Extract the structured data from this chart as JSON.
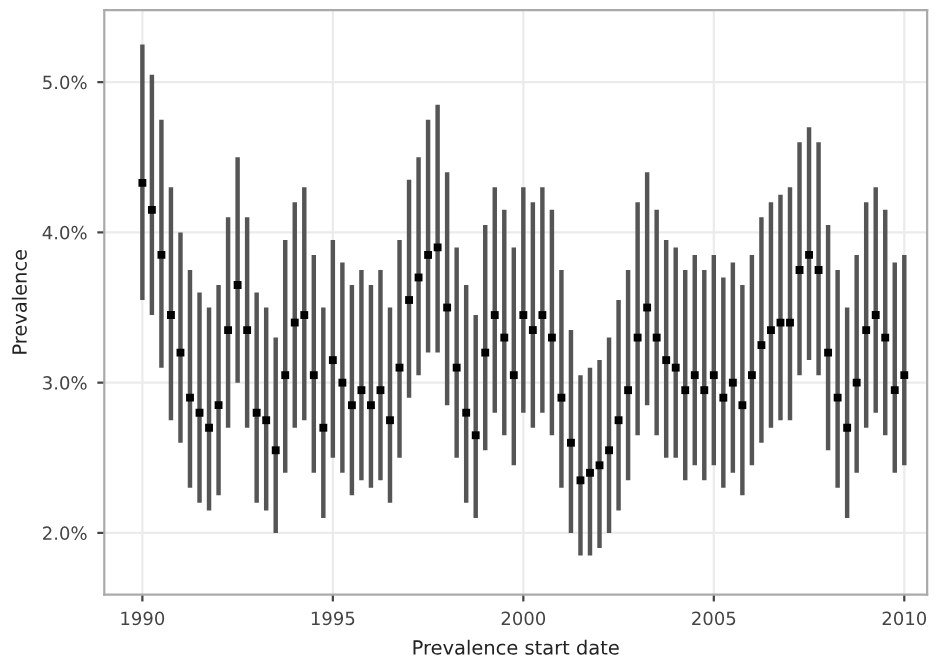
{
  "chart_data": {
    "type": "scatter",
    "xlabel": "Prevalence start date",
    "ylabel": "Prevalence",
    "x": [
      1990.0,
      1990.25,
      1990.5,
      1990.75,
      1991.0,
      1991.25,
      1991.5,
      1991.75,
      1992.0,
      1992.25,
      1992.5,
      1992.75,
      1993.0,
      1993.25,
      1993.5,
      1993.75,
      1994.0,
      1994.25,
      1994.5,
      1994.75,
      1995.0,
      1995.25,
      1995.5,
      1995.75,
      1996.0,
      1996.25,
      1996.5,
      1996.75,
      1997.0,
      1997.25,
      1997.5,
      1997.75,
      1998.0,
      1998.25,
      1998.5,
      1998.75,
      1999.0,
      1999.25,
      1999.5,
      1999.75,
      2000.0,
      2000.25,
      2000.5,
      2000.75,
      2001.0,
      2001.25,
      2001.5,
      2001.75,
      2002.0,
      2002.25,
      2002.5,
      2002.75,
      2003.0,
      2003.25,
      2003.5,
      2003.75,
      2004.0,
      2004.25,
      2004.5,
      2004.75,
      2005.0,
      2005.25,
      2005.5,
      2005.75,
      2006.0,
      2006.25,
      2006.5,
      2006.75,
      2007.0,
      2007.25,
      2007.5,
      2007.75,
      2008.0,
      2008.25,
      2008.5,
      2008.75,
      2009.0,
      2009.25,
      2009.5,
      2009.75,
      2010.0
    ],
    "series": [
      {
        "color": "#000000",
        "values": [
          4.33,
          4.15,
          3.85,
          3.45,
          3.2,
          2.9,
          2.8,
          2.7,
          2.85,
          3.35,
          3.65,
          3.35,
          2.8,
          2.75,
          2.55,
          3.05,
          3.4,
          3.45,
          3.05,
          2.7,
          3.15,
          3.0,
          2.85,
          2.95,
          2.85,
          2.95,
          2.75,
          3.1,
          3.55,
          3.7,
          3.85,
          3.9,
          3.5,
          3.1,
          2.8,
          2.65,
          3.2,
          3.45,
          3.3,
          3.05,
          3.45,
          3.35,
          3.45,
          3.3,
          2.9,
          2.6,
          2.35,
          2.4,
          2.45,
          2.55,
          2.75,
          2.95,
          3.3,
          3.5,
          3.3,
          3.15,
          3.1,
          2.95,
          3.05,
          2.95,
          3.05,
          2.9,
          3.0,
          2.85,
          3.05,
          3.25,
          3.35,
          3.4,
          3.4,
          3.75,
          3.85,
          3.75,
          3.2,
          2.9,
          2.7,
          3.0,
          3.35,
          3.45,
          3.3,
          2.95,
          3.05
        ],
        "errors": [
          [
            3.55,
            5.25
          ],
          [
            3.45,
            5.05
          ],
          [
            3.1,
            4.75
          ],
          [
            2.75,
            4.3
          ],
          [
            2.6,
            4.0
          ],
          [
            2.3,
            3.75
          ],
          [
            2.2,
            3.6
          ],
          [
            2.15,
            3.5
          ],
          [
            2.25,
            3.65
          ],
          [
            2.7,
            4.1
          ],
          [
            3.0,
            4.5
          ],
          [
            2.7,
            4.1
          ],
          [
            2.2,
            3.6
          ],
          [
            2.15,
            3.5
          ],
          [
            2.0,
            3.3
          ],
          [
            2.4,
            3.95
          ],
          [
            2.7,
            4.2
          ],
          [
            2.75,
            4.3
          ],
          [
            2.4,
            3.85
          ],
          [
            2.1,
            3.5
          ],
          [
            2.5,
            3.95
          ],
          [
            2.4,
            3.8
          ],
          [
            2.25,
            3.65
          ],
          [
            2.35,
            3.75
          ],
          [
            2.3,
            3.65
          ],
          [
            2.35,
            3.75
          ],
          [
            2.2,
            3.5
          ],
          [
            2.5,
            3.95
          ],
          [
            2.9,
            4.35
          ],
          [
            3.05,
            4.5
          ],
          [
            3.2,
            4.75
          ],
          [
            3.2,
            4.85
          ],
          [
            2.85,
            4.4
          ],
          [
            2.5,
            3.9
          ],
          [
            2.2,
            3.65
          ],
          [
            2.1,
            3.45
          ],
          [
            2.55,
            4.05
          ],
          [
            2.8,
            4.3
          ],
          [
            2.65,
            4.15
          ],
          [
            2.45,
            3.9
          ],
          [
            2.8,
            4.3
          ],
          [
            2.7,
            4.2
          ],
          [
            2.8,
            4.3
          ],
          [
            2.65,
            4.15
          ],
          [
            2.3,
            3.75
          ],
          [
            2.0,
            3.35
          ],
          [
            1.85,
            3.05
          ],
          [
            1.85,
            3.1
          ],
          [
            1.9,
            3.15
          ],
          [
            2.0,
            3.3
          ],
          [
            2.15,
            3.55
          ],
          [
            2.35,
            3.75
          ],
          [
            2.65,
            4.2
          ],
          [
            2.85,
            4.4
          ],
          [
            2.65,
            4.15
          ],
          [
            2.5,
            3.95
          ],
          [
            2.5,
            3.9
          ],
          [
            2.35,
            3.75
          ],
          [
            2.45,
            3.85
          ],
          [
            2.35,
            3.75
          ],
          [
            2.45,
            3.85
          ],
          [
            2.3,
            3.7
          ],
          [
            2.4,
            3.8
          ],
          [
            2.25,
            3.65
          ],
          [
            2.45,
            3.85
          ],
          [
            2.6,
            4.1
          ],
          [
            2.7,
            4.2
          ],
          [
            2.75,
            4.25
          ],
          [
            2.75,
            4.3
          ],
          [
            3.05,
            4.6
          ],
          [
            3.15,
            4.7
          ],
          [
            3.05,
            4.6
          ],
          [
            2.55,
            4.05
          ],
          [
            2.3,
            3.75
          ],
          [
            2.1,
            3.5
          ],
          [
            2.4,
            3.85
          ],
          [
            2.7,
            4.2
          ],
          [
            2.8,
            4.3
          ],
          [
            2.65,
            4.15
          ],
          [
            2.4,
            3.8
          ],
          [
            2.45,
            3.85
          ]
        ]
      }
    ],
    "marker": "square",
    "grid": true,
    "xlim": [
      1989.0,
      2010.6
    ],
    "xticks": [
      1990,
      1995,
      2000,
      2005,
      2010
    ],
    "ylim": [
      1.59,
      5.48
    ],
    "yticks": [
      {
        "value": 2,
        "label": "2.0%"
      },
      {
        "value": 3,
        "label": "3.0%"
      },
      {
        "value": 4,
        "label": "4.0%"
      },
      {
        "value": 5,
        "label": "5.0%"
      }
    ]
  }
}
